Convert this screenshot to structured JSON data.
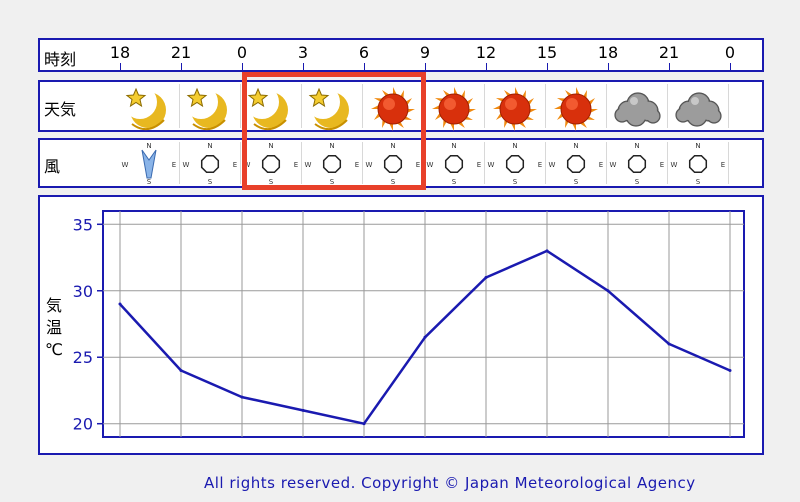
{
  "rows": {
    "time_label": "時刻",
    "weather_label": "天気",
    "wind_label": "風"
  },
  "time_labels": [
    "18",
    "21",
    "0",
    "3",
    "6",
    "9",
    "12",
    "15",
    "18",
    "21",
    "0"
  ],
  "weather_icons": [
    "moon-star-icon",
    "moon-star-icon",
    "moon-star-icon",
    "moon-star-icon",
    "sun-icon",
    "sun-icon",
    "sun-icon",
    "sun-icon",
    "cloud-icon",
    "cloud-icon"
  ],
  "wind": {
    "compass": {
      "north": "N",
      "south": "S",
      "east": "E",
      "west": "W"
    },
    "cells": [
      "arrow-from-north-icon",
      "calm-icon",
      "calm-icon",
      "calm-icon",
      "calm-icon",
      "calm-icon",
      "calm-icon",
      "calm-icon",
      "calm-icon",
      "calm-icon"
    ]
  },
  "chart_data": {
    "type": "line",
    "ylabel": "気温℃",
    "ylabel_chars": [
      "気",
      "温",
      "℃"
    ],
    "x": [
      "18",
      "21",
      "0",
      "3",
      "6",
      "9",
      "12",
      "15",
      "18",
      "21",
      "0"
    ],
    "series": [
      {
        "values": [
          29,
          24,
          22,
          21,
          20,
          26.5,
          31,
          33,
          30,
          26,
          24
        ]
      }
    ],
    "y_ticks": [
      "20",
      "25",
      "30",
      "35"
    ],
    "ylim": [
      19,
      36
    ],
    "grid": true,
    "line_color": "#1a1ab0"
  },
  "footer": "All rights reserved. Copyright © Japan Meteorological Agency",
  "colors": {
    "border": "#1a1ab0",
    "highlight": "#e8402a"
  }
}
